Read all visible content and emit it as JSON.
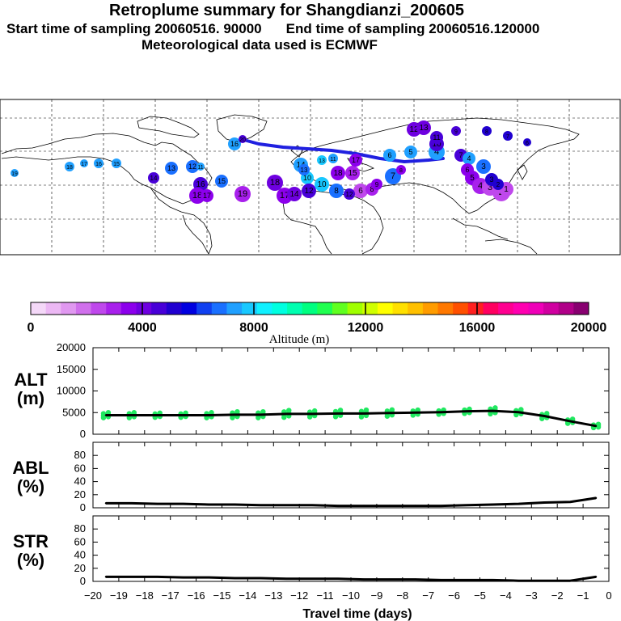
{
  "header": {
    "title": "Retroplume summary for Shangdianzi_200605",
    "start": "Start time of sampling 20060516. 90000",
    "end": "End time of sampling 20060516.120000",
    "met": "Meteorological data used is ECMWF"
  },
  "colorbar": {
    "colors": [
      "#f4d8f8",
      "#ecb8f4",
      "#e098f0",
      "#d070ec",
      "#bf48ec",
      "#a820ec",
      "#8c00ec",
      "#6e00e0",
      "#4800d8",
      "#2000d0",
      "#0000e0",
      "#1040f0",
      "#1a70ff",
      "#20a0ff",
      "#18c8ff",
      "#10f0ff",
      "#00ffe0",
      "#00ffb0",
      "#00ff80",
      "#20ff50",
      "#60ff20",
      "#a0ff00",
      "#d0ff00",
      "#ffff00",
      "#ffe000",
      "#ffc000",
      "#ff9c00",
      "#ff7800",
      "#ff5000",
      "#ff2020",
      "#ff0060",
      "#ff0090",
      "#ff00b0",
      "#ef00b8",
      "#d000a0",
      "#b00088",
      "#880070"
    ],
    "ticks": [
      "0",
      "4000",
      "8000",
      "12000",
      "16000",
      "20000"
    ],
    "label": "Altitude (m)"
  },
  "map": {
    "route_color": "#2020e0",
    "labels": [
      "1",
      "2",
      "3",
      "4",
      "5",
      "6",
      "7",
      "8",
      "9",
      "10",
      "11",
      "12",
      "13",
      "14",
      "15",
      "16",
      "17",
      "18",
      "19",
      "20"
    ]
  },
  "chart_data": [
    {
      "type": "line",
      "panel": "ALT",
      "ylabel": "ALT (m)",
      "ylabel_top": "ALT",
      "ylabel_bottom": "(m)",
      "ylim": [
        0,
        20000
      ],
      "yticks": [
        "20000",
        "15000",
        "10000",
        "5000",
        "0"
      ],
      "x": [
        -19.5,
        -18.5,
        -17.5,
        -16.5,
        -15.5,
        -14.5,
        -13.5,
        -12.5,
        -11.5,
        -10.5,
        -9.5,
        -8.5,
        -7.5,
        -6.5,
        -5.5,
        -4.5,
        -3.5,
        -2.5,
        -1.5,
        -0.5
      ],
      "values": [
        4400,
        4400,
        4400,
        4400,
        4400,
        4500,
        4500,
        4700,
        4700,
        4800,
        4800,
        4900,
        5000,
        5100,
        5300,
        5400,
        5100,
        4200,
        3000,
        1900
      ],
      "scatter_color": "#20e860",
      "scatter_spread": [
        1200,
        1200,
        1000,
        1000,
        1200,
        1400,
        1400,
        1600,
        1400,
        1500,
        1600,
        1500,
        1200,
        1000,
        1000,
        1400,
        1200,
        1200,
        1000,
        800
      ]
    },
    {
      "type": "line",
      "panel": "ABL",
      "ylabel": "ABL (%)",
      "ylabel_top": "ABL",
      "ylabel_bottom": "(%)",
      "ylim": [
        0,
        100
      ],
      "yticks": [
        "80",
        "60",
        "40",
        "20",
        "0"
      ],
      "x": [
        -19.5,
        -18.5,
        -17.5,
        -16.5,
        -15.5,
        -14.5,
        -13.5,
        -12.5,
        -11.5,
        -10.5,
        -9.5,
        -8.5,
        -7.5,
        -6.5,
        -5.5,
        -4.5,
        -3.5,
        -2.5,
        -1.5,
        -0.5
      ],
      "values": [
        7,
        7,
        6,
        6,
        5,
        5,
        4,
        4,
        4,
        3,
        3,
        3,
        3,
        3,
        4,
        5,
        6,
        8,
        9,
        15
      ]
    },
    {
      "type": "line",
      "panel": "STR",
      "ylabel": "STR (%)",
      "ylabel_top": "STR",
      "ylabel_bottom": "(%)",
      "ylim": [
        0,
        100
      ],
      "yticks": [
        "80",
        "60",
        "40",
        "20",
        "0"
      ],
      "x": [
        -19.5,
        -18.5,
        -17.5,
        -16.5,
        -15.5,
        -14.5,
        -13.5,
        -12.5,
        -11.5,
        -10.5,
        -9.5,
        -8.5,
        -7.5,
        -6.5,
        -5.5,
        -4.5,
        -3.5,
        -2.5,
        -1.5,
        -0.5
      ],
      "values": [
        7,
        7,
        7,
        6,
        6,
        5,
        5,
        4,
        4,
        4,
        3,
        3,
        3,
        2,
        2,
        2,
        1,
        1,
        1,
        7
      ],
      "xlabel": "Travel time (days)",
      "xlim": [
        -20,
        0
      ],
      "xticks": [
        "−20",
        "−19",
        "−18",
        "−17",
        "−16",
        "−15",
        "−14",
        "−13",
        "−12",
        "−11",
        "−10",
        "−9",
        "−8",
        "−7",
        "−6",
        "−5",
        "−4",
        "−3",
        "−2",
        "−1",
        "0"
      ]
    }
  ]
}
